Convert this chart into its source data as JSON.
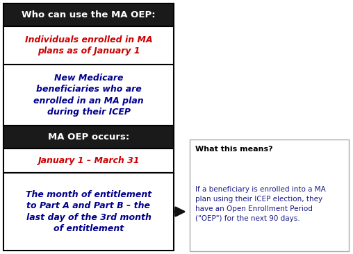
{
  "header1_text": "Who can use the MA OEP:",
  "header1_bg": "#1a1a1a",
  "header1_color": "#ffffff",
  "cell1_text": "Individuals enrolled in MA\nplans as of January 1",
  "cell1_color": "#cc0000",
  "cell2_text": "New Medicare\nbeneficiaries who are\nenrolled in an MA plan\nduring their ICEP",
  "cell2_color": "#00008B",
  "header2_text": "MA OEP occurs:",
  "header2_bg": "#1a1a1a",
  "header2_color": "#ffffff",
  "cell3_text": "January 1 – March 31",
  "cell3_color": "#cc0000",
  "cell4_text": "The month of entitlement\nto Part A and Part B – the\nlast day of the 3rd month\nof entitlement",
  "cell4_color": "#00008B",
  "box_title": "What this means?",
  "box_title_color": "#000000",
  "box_body": "If a beneficiary is enrolled into a MA\nplan using their ICEP election, they\nhave an Open Enrollment Period\n(\"OEP\") for the next 90 days.",
  "box_body_color": "#1a1a8a",
  "box_bg": "#ffffff",
  "box_border": "#aaaaaa",
  "background_color": "#ffffff",
  "table_border_color": "#000000",
  "fig_width": 5.08,
  "fig_height": 3.66,
  "dpi": 100
}
